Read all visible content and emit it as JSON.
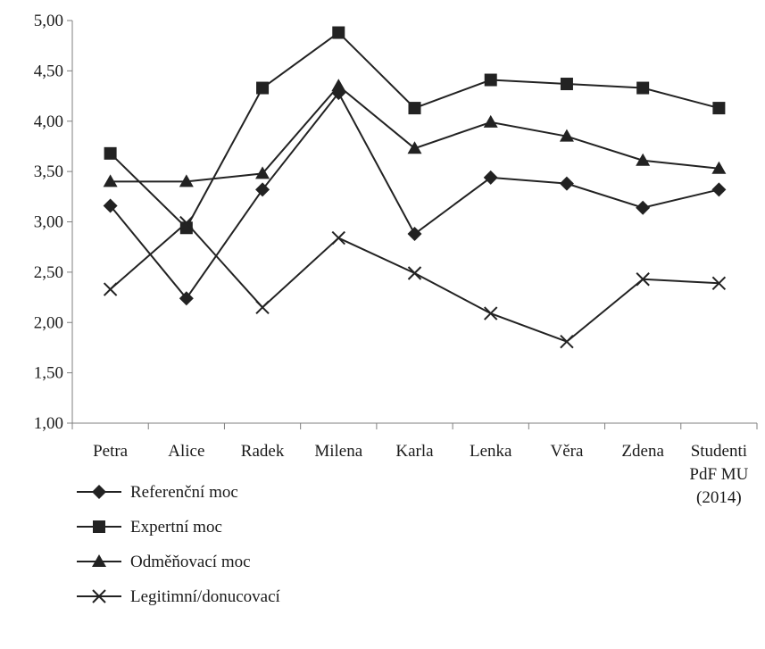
{
  "chart_data": {
    "type": "line",
    "title": "",
    "xlabel": "",
    "ylabel": "",
    "ylim": [
      1.0,
      5.0
    ],
    "ytick_step": 0.5,
    "ytick_labels": [
      "1,00",
      "1,50",
      "2,00",
      "2,50",
      "3,00",
      "3,50",
      "4,00",
      "4,50",
      "5,00"
    ],
    "categories": [
      [
        "Petra"
      ],
      [
        "Alice"
      ],
      [
        "Radek"
      ],
      [
        "Milena"
      ],
      [
        "Karla"
      ],
      [
        "Lenka"
      ],
      [
        "Věra"
      ],
      [
        "Zdena"
      ],
      [
        "Studenti",
        "PdF MU",
        "(2014)"
      ]
    ],
    "grid": false,
    "legend_position": "bottom-left",
    "series": [
      {
        "name": "Referenční moc",
        "marker": "diamond",
        "values": [
          3.16,
          2.24,
          3.32,
          4.28,
          2.88,
          3.44,
          3.38,
          3.14,
          3.32
        ]
      },
      {
        "name": "Expertní moc",
        "marker": "square",
        "values": [
          3.68,
          2.94,
          4.33,
          4.88,
          4.13,
          4.41,
          4.37,
          4.33,
          4.13
        ]
      },
      {
        "name": "Odměňovací moc",
        "marker": "triangle",
        "values": [
          3.4,
          3.4,
          3.48,
          4.35,
          3.73,
          3.99,
          3.85,
          3.61,
          3.53
        ]
      },
      {
        "name": "Legitimní/donucovací",
        "marker": "x",
        "values": [
          2.33,
          2.99,
          2.15,
          2.84,
          2.49,
          2.09,
          1.81,
          2.43,
          2.39
        ]
      }
    ],
    "colors": {
      "line": "#222222",
      "axis": "#7f7f7f"
    }
  }
}
